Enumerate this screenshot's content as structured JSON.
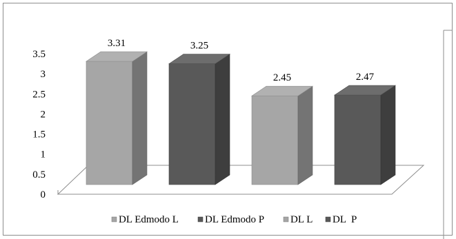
{
  "chart_data": {
    "type": "bar",
    "categories": [
      "DL Edmodo L",
      "DL Edmodo P",
      "DL L",
      "DL  P"
    ],
    "values": [
      3.31,
      3.25,
      2.45,
      2.47
    ],
    "data_labels": [
      "3.31",
      "3.25",
      "2.45",
      "2.47"
    ],
    "series": [
      {
        "name": "DL Edmodo L",
        "value": 3.31,
        "color": "#a6a6a6"
      },
      {
        "name": "DL Edmodo P",
        "value": 3.25,
        "color": "#595959"
      },
      {
        "name": "DL L",
        "value": 2.45,
        "color": "#a6a6a6"
      },
      {
        "name": "DL  P",
        "value": 2.47,
        "color": "#595959"
      }
    ],
    "y_ticks": [
      "0",
      "0.5",
      "1",
      "1.5",
      "2",
      "2.5",
      "3",
      "3.5"
    ],
    "ylim": [
      0,
      3.5
    ],
    "title": "",
    "xlabel": "",
    "ylabel": "",
    "grid": false,
    "style": "3d-column",
    "legend_position": "bottom"
  }
}
